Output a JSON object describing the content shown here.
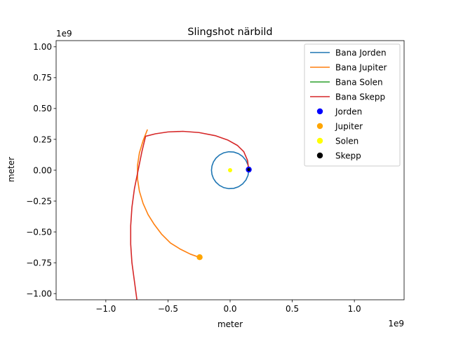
{
  "chart_data": {
    "type": "line",
    "title": "Slingshot närbild",
    "xlabel": "meter",
    "ylabel": "meter",
    "x_offset_label": "1e9",
    "y_offset_label": "1e9",
    "xlim": [
      -1.4,
      1.4
    ],
    "ylim": [
      -1.05,
      1.05
    ],
    "x_ticks": [
      -1.0,
      -0.5,
      0.0,
      0.5,
      1.0
    ],
    "x_tick_labels": [
      "−1.0",
      "−0.5",
      "0.0",
      "0.5",
      "1.0"
    ],
    "y_ticks": [
      -1.0,
      -0.75,
      -0.5,
      -0.25,
      0.0,
      0.25,
      0.5,
      0.75,
      1.0
    ],
    "y_tick_labels": [
      "−1.00",
      "−0.75",
      "−0.50",
      "−0.25",
      "0.00",
      "0.25",
      "0.50",
      "0.75",
      "1.00"
    ],
    "grid": false,
    "legend_position": "top-right",
    "series": [
      {
        "name": "Bana Jorden",
        "color": "#1f77b4",
        "kind": "line",
        "points": [
          [
            0.15,
            0.0
          ],
          [
            0.1442,
            0.0413
          ],
          [
            0.1273,
            0.0794
          ],
          [
            0.101,
            0.1109
          ],
          [
            0.0674,
            0.134
          ],
          [
            0.029,
            0.1472
          ],
          [
            -0.0113,
            0.1496
          ],
          [
            -0.0503,
            0.1413
          ],
          [
            -0.0855,
            0.1232
          ],
          [
            -0.1142,
            0.0972
          ],
          [
            -0.1343,
            0.0668
          ],
          [
            -0.146,
            0.0344
          ],
          [
            -0.15,
            0.0
          ],
          [
            -0.146,
            -0.0344
          ],
          [
            -0.1343,
            -0.0668
          ],
          [
            -0.1142,
            -0.0972
          ],
          [
            -0.0855,
            -0.1232
          ],
          [
            -0.0503,
            -0.1413
          ],
          [
            -0.0113,
            -0.1496
          ],
          [
            0.029,
            -0.1472
          ],
          [
            0.0674,
            -0.134
          ],
          [
            0.101,
            -0.1109
          ],
          [
            0.1273,
            -0.0794
          ],
          [
            0.1442,
            -0.0413
          ],
          [
            0.15,
            0.0
          ]
        ]
      },
      {
        "name": "Bana Jupiter",
        "color": "#ff7f0e",
        "kind": "line",
        "points": [
          [
            -0.665,
            0.33
          ],
          [
            -0.7,
            0.24
          ],
          [
            -0.73,
            0.14
          ],
          [
            -0.745,
            0.04
          ],
          [
            -0.745,
            -0.07
          ],
          [
            -0.73,
            -0.17
          ],
          [
            -0.7,
            -0.27
          ],
          [
            -0.66,
            -0.36
          ],
          [
            -0.61,
            -0.44
          ],
          [
            -0.55,
            -0.52
          ],
          [
            -0.48,
            -0.59
          ],
          [
            -0.4,
            -0.64
          ],
          [
            -0.32,
            -0.68
          ],
          [
            -0.25,
            -0.705
          ]
        ]
      },
      {
        "name": "Bana Solen",
        "color": "#2ca02c",
        "kind": "line",
        "points": [
          [
            -0.005,
            0.0
          ],
          [
            0.0,
            0.0
          ]
        ]
      },
      {
        "name": "Bana Skepp",
        "color": "#d62728",
        "kind": "line",
        "points": [
          [
            -0.75,
            -1.05
          ],
          [
            -0.77,
            -0.9
          ],
          [
            -0.79,
            -0.75
          ],
          [
            -0.8,
            -0.6
          ],
          [
            -0.8,
            -0.45
          ],
          [
            -0.79,
            -0.3
          ],
          [
            -0.77,
            -0.15
          ],
          [
            -0.74,
            0.0
          ],
          [
            -0.71,
            0.15
          ],
          [
            -0.68,
            0.275
          ],
          [
            -0.6,
            0.295
          ],
          [
            -0.5,
            0.31
          ],
          [
            -0.38,
            0.315
          ],
          [
            -0.25,
            0.305
          ],
          [
            -0.12,
            0.28
          ],
          [
            -0.02,
            0.245
          ],
          [
            0.06,
            0.2
          ],
          [
            0.11,
            0.15
          ],
          [
            0.14,
            0.08
          ],
          [
            0.15,
            0.005
          ]
        ]
      },
      {
        "name": "Jorden",
        "color": "#0000ff",
        "kind": "marker",
        "points": [
          [
            0.15,
            0.005
          ]
        ]
      },
      {
        "name": "Jupiter",
        "color": "#ffa500",
        "kind": "marker",
        "points": [
          [
            -0.245,
            -0.705
          ]
        ]
      },
      {
        "name": "Solen",
        "color": "#ffff00",
        "kind": "marker",
        "points": [
          [
            0.0,
            0.0
          ]
        ]
      },
      {
        "name": "Skepp",
        "color": "#000000",
        "kind": "marker",
        "points": [
          [
            0.15,
            0.005
          ]
        ]
      }
    ]
  }
}
